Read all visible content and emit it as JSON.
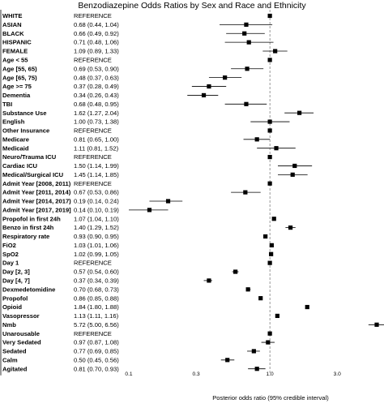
{
  "chart_data": {
    "type": "forest",
    "title": "Benzodiazepine Odds Ratios by Sex and Race and Ethnicity",
    "xlabel": "Posterior odds ratio (95% credible interval)",
    "x_scale": "log",
    "xlim": [
      0.1,
      5.72
    ],
    "x_ticks": [
      {
        "value": 0.1,
        "label": "0.1"
      },
      {
        "value": 0.3,
        "label": "0.3"
      },
      {
        "value": 1.0,
        "label": "1.0"
      },
      {
        "value": 3.0,
        "label": "3.0"
      }
    ],
    "reference_line": 1.0,
    "rows": [
      {
        "label": "WHITE",
        "text": "REFERENCE",
        "or": 1.0,
        "lo": null,
        "hi": null,
        "bold": true
      },
      {
        "label": "ASIAN",
        "text": "0.68 (0.44, 1.04)",
        "or": 0.68,
        "lo": 0.44,
        "hi": 1.04,
        "bold": true
      },
      {
        "label": "BLACK",
        "text": "0.66 (0.49, 0.92)",
        "or": 0.66,
        "lo": 0.49,
        "hi": 0.92,
        "bold": true
      },
      {
        "label": "HISPANIC",
        "text": "0.71 (0.48, 1.06)",
        "or": 0.71,
        "lo": 0.48,
        "hi": 1.06,
        "bold": true
      },
      {
        "label": "FEMALE",
        "text": "1.09 (0.89, 1.33)",
        "or": 1.09,
        "lo": 0.89,
        "hi": 1.33,
        "bold": true
      },
      {
        "label": "Age < 55",
        "text": "REFERENCE",
        "or": 1.0,
        "lo": null,
        "hi": null,
        "bold": true
      },
      {
        "label": "Age [55, 65)",
        "text": "0.69 (0.53, 0.90)",
        "or": 0.69,
        "lo": 0.53,
        "hi": 0.9,
        "bold": true
      },
      {
        "label": "Age [65, 75)",
        "text": "0.48 (0.37, 0.63)",
        "or": 0.48,
        "lo": 0.37,
        "hi": 0.63,
        "bold": true
      },
      {
        "label": "Age >= 75",
        "text": "0.37 (0.28, 0.49)",
        "or": 0.37,
        "lo": 0.28,
        "hi": 0.49,
        "bold": true
      },
      {
        "label": "Dementia",
        "text": "0.34 (0.26, 0.43)",
        "or": 0.34,
        "lo": 0.26,
        "hi": 0.43,
        "bold": true
      },
      {
        "label": "TBI",
        "text": "0.68 (0.48, 0.95)",
        "or": 0.68,
        "lo": 0.48,
        "hi": 0.95,
        "bold": true
      },
      {
        "label": "Substance Use",
        "text": "1.62 (1.27, 2.04)",
        "or": 1.62,
        "lo": 1.27,
        "hi": 2.04,
        "bold": true
      },
      {
        "label": "English",
        "text": "1.00 (0.73, 1.38)",
        "or": 1.0,
        "lo": 0.73,
        "hi": 1.38,
        "bold": true
      },
      {
        "label": "Other Insurance",
        "text": "REFERENCE",
        "or": 1.0,
        "lo": null,
        "hi": null,
        "bold": true
      },
      {
        "label": "Medicare",
        "text": "0.81 (0.65, 1.00)",
        "or": 0.81,
        "lo": 0.65,
        "hi": 1.0,
        "bold": true
      },
      {
        "label": "Medicaid",
        "text": "1.11 (0.81, 1.52)",
        "or": 1.11,
        "lo": 0.81,
        "hi": 1.52,
        "bold": true
      },
      {
        "label": "Neuro/Trauma ICU",
        "text": "REFERENCE",
        "or": 1.0,
        "lo": null,
        "hi": null,
        "bold": true
      },
      {
        "label": "Cardiac ICU",
        "text": "1.50 (1.14, 1.99)",
        "or": 1.5,
        "lo": 1.14,
        "hi": 1.99,
        "bold": true
      },
      {
        "label": "Medical/Surgical ICU",
        "text": "1.45 (1.14, 1.85)",
        "or": 1.45,
        "lo": 1.14,
        "hi": 1.85,
        "bold": true
      },
      {
        "label": "Admit Year [2008, 2011)",
        "text": "REFERENCE",
        "or": 1.0,
        "lo": null,
        "hi": null,
        "bold": true
      },
      {
        "label": "Admit Year [2011, 2014)",
        "text": "0.67 (0.53, 0.86)",
        "or": 0.67,
        "lo": 0.53,
        "hi": 0.86,
        "bold": true
      },
      {
        "label": "Admit Year [2014, 2017)",
        "text": "0.19 (0.14, 0.24)",
        "or": 0.19,
        "lo": 0.14,
        "hi": 0.24,
        "bold": true
      },
      {
        "label": "Admit Year [2017, 2019]",
        "text": "0.14 (0.10, 0.19)",
        "or": 0.14,
        "lo": 0.1,
        "hi": 0.19,
        "bold": true
      },
      {
        "label": "Propofol in first 24h",
        "text": "1.07 (1.04, 1.10)",
        "or": 1.07,
        "lo": 1.04,
        "hi": 1.1,
        "bold": true
      },
      {
        "label": "Benzo in first 24h",
        "text": "1.40 (1.29, 1.52)",
        "or": 1.4,
        "lo": 1.29,
        "hi": 1.52,
        "bold": true
      },
      {
        "label": "Respiratory rate",
        "text": "0.93 (0.90, 0.95)",
        "or": 0.93,
        "lo": 0.9,
        "hi": 0.95,
        "bold": true
      },
      {
        "label": "FiO2",
        "text": "1.03 (1.01, 1.06)",
        "or": 1.03,
        "lo": 1.01,
        "hi": 1.06,
        "bold": true
      },
      {
        "label": "SpO2",
        "text": "1.02 (0.99, 1.05)",
        "or": 1.02,
        "lo": 0.99,
        "hi": 1.05,
        "bold": true
      },
      {
        "label": "Day 1",
        "text": "REFERENCE",
        "or": 1.0,
        "lo": null,
        "hi": null,
        "bold": true
      },
      {
        "label": "Day [2, 3]",
        "text": "0.57 (0.54, 0.60)",
        "or": 0.57,
        "lo": 0.54,
        "hi": 0.6,
        "bold": true
      },
      {
        "label": "Day [4, 7]",
        "text": "0.37 (0.34, 0.39)",
        "or": 0.37,
        "lo": 0.34,
        "hi": 0.39,
        "bold": true
      },
      {
        "label": "Dexmedetomidine",
        "text": "0.70 (0.68, 0.73)",
        "or": 0.7,
        "lo": 0.68,
        "hi": 0.73,
        "bold": true
      },
      {
        "label": "Propofol",
        "text": "0.86 (0.85, 0.88)",
        "or": 0.86,
        "lo": 0.85,
        "hi": 0.88,
        "bold": true
      },
      {
        "label": "Opioid",
        "text": "1.84 (1.80, 1.88)",
        "or": 1.84,
        "lo": 1.8,
        "hi": 1.88,
        "bold": true
      },
      {
        "label": "Vasopressor",
        "text": "1.13 (1.11, 1.16)",
        "or": 1.13,
        "lo": 1.11,
        "hi": 1.16,
        "bold": true
      },
      {
        "label": "Nmb",
        "text": "5.72 (5.00, 6.56)",
        "or": 5.72,
        "lo": 5.0,
        "hi": 6.56,
        "bold": true
      },
      {
        "label": "Unarousable",
        "text": "REFERENCE",
        "or": 1.0,
        "lo": null,
        "hi": null,
        "bold": true
      },
      {
        "label": "Very Sedated",
        "text": "0.97 (0.87, 1.08)",
        "or": 0.97,
        "lo": 0.87,
        "hi": 1.08,
        "bold": true
      },
      {
        "label": "Sedated",
        "text": "0.77 (0.69, 0.85)",
        "or": 0.77,
        "lo": 0.69,
        "hi": 0.85,
        "bold": true
      },
      {
        "label": "Calm",
        "text": "0.50 (0.45, 0.56)",
        "or": 0.5,
        "lo": 0.45,
        "hi": 0.56,
        "bold": true
      },
      {
        "label": "Agitated",
        "text": "0.81 (0.70, 0.93)",
        "or": 0.81,
        "lo": 0.7,
        "hi": 0.93,
        "bold": true
      }
    ]
  }
}
